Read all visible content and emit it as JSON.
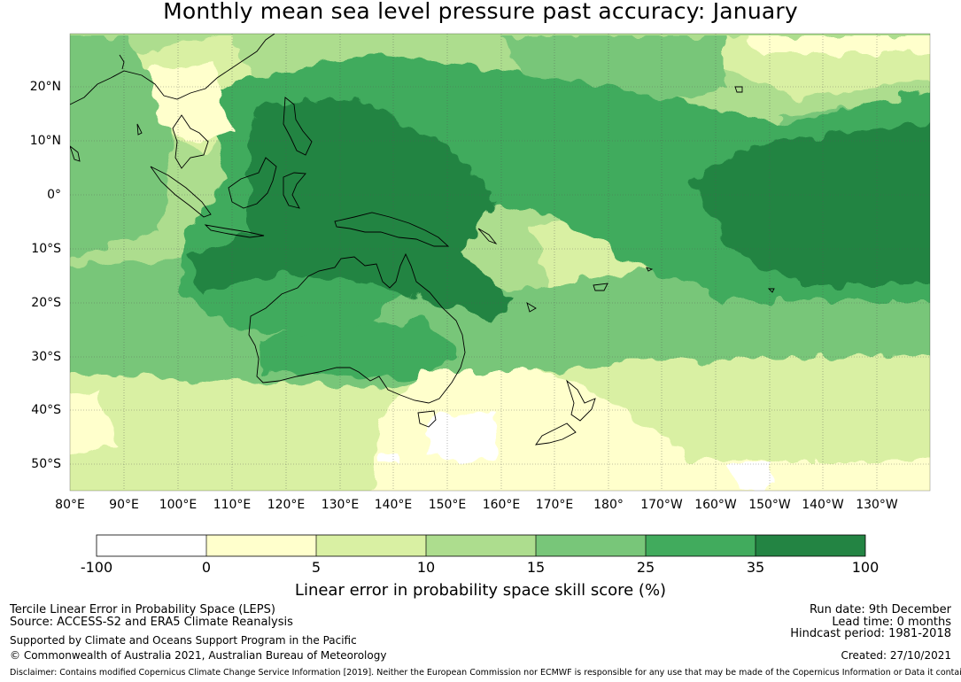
{
  "title": "Monthly mean sea level pressure past accuracy: January",
  "map": {
    "lat_labels": [
      "20°N",
      "10°N",
      "0°",
      "10°S",
      "20°S",
      "30°S",
      "40°S",
      "50°S"
    ],
    "lon_labels": [
      "80°E",
      "90°E",
      "100°E",
      "110°E",
      "120°E",
      "130°E",
      "140°E",
      "150°E",
      "160°E",
      "170°E",
      "180°",
      "170°W",
      "160°W",
      "150°W",
      "140°W",
      "130°W"
    ]
  },
  "colorbar": {
    "ticks": [
      "-100",
      "0",
      "5",
      "10",
      "15",
      "25",
      "35",
      "100"
    ],
    "colors": [
      "#ffffff",
      "#ffffcc",
      "#d9f0a3",
      "#addd8e",
      "#78c679",
      "#41ab5d",
      "#238443"
    ],
    "label": "Linear error in probability space skill score (%)"
  },
  "footer": {
    "left": [
      "Tercile Linear Error in Probability Space (LEPS)",
      "Source: ACCESS-S2 and ERA5 Climate Reanalysis",
      "Supported by Climate and Oceans Support Program in the Pacific",
      "© Commonwealth of Australia 2021, Australian Bureau of Meteorology"
    ],
    "right": [
      "Run date: 9th December",
      "Lead time: 0 months",
      "Hindcast period: 1981-2018",
      "Created: 27/10/2021"
    ],
    "disclaimer": "Disclaimer: Contains modified Copernicus Climate Change Service Information [2019]. Neither the European Commission nor ECMWF is responsible for any use that may be made of the Copernicus Information or Data it contains."
  }
}
